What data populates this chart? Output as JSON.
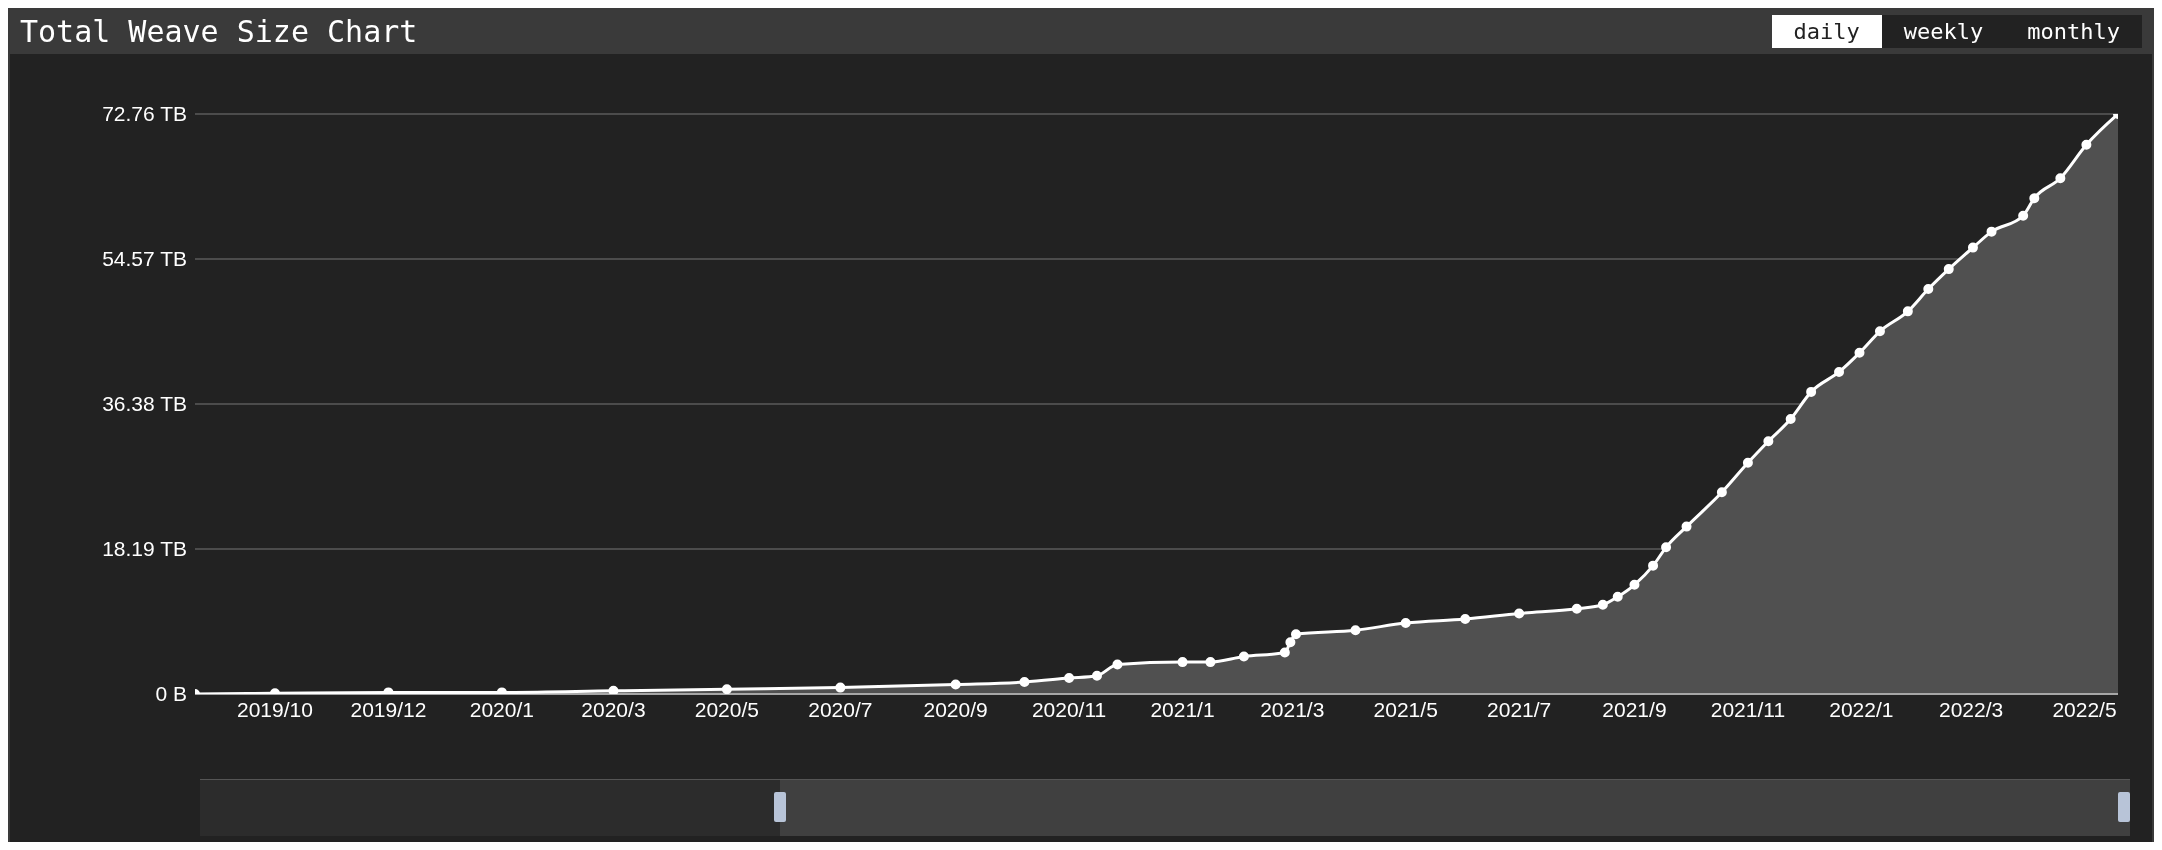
{
  "chart_data": {
    "type": "area",
    "title": "Total Weave Size Chart",
    "annotations": [
      "daily",
      "weekly",
      "monthly"
    ],
    "x": [
      "2019-07-20",
      "2019-09-01",
      "2019-11-01",
      "2020-01-01",
      "2020-03-01",
      "2020-05-01",
      "2020-07-01",
      "2020-09-01",
      "2020-10-08",
      "2020-11-01",
      "2020-11-16",
      "2020-11-27",
      "2021-01-01",
      "2021-01-16",
      "2021-02-03",
      "2021-02-25",
      "2021-02-28",
      "2021-03-03",
      "2021-04-04",
      "2021-05-01",
      "2021-06-02",
      "2021-07-01",
      "2021-08-01",
      "2021-08-15",
      "2021-08-23",
      "2021-09-01",
      "2021-09-11",
      "2021-09-18",
      "2021-09-29",
      "2021-10-18",
      "2021-11-01",
      "2021-11-12",
      "2021-11-24",
      "2021-12-05",
      "2021-12-20",
      "2021-12-31",
      "2022-01-11",
      "2022-01-26",
      "2022-02-06",
      "2022-02-17",
      "2022-03-02",
      "2022-03-12",
      "2022-03-29",
      "2022-04-04",
      "2022-04-18",
      "2022-05-02",
      "2022-05-19"
    ],
    "series": [
      {
        "color": "#ffffff",
        "values": [
          0.0,
          0.1,
          0.2,
          0.2,
          0.4,
          0.6,
          0.8,
          1.2,
          1.5,
          2.0,
          2.3,
          3.7,
          4.0,
          4.0,
          4.7,
          5.2,
          6.5,
          7.5,
          8.0,
          8.9,
          9.4,
          10.1,
          10.7,
          11.2,
          12.2,
          13.7,
          16.1,
          18.4,
          21.0,
          25.3,
          29.0,
          31.7,
          34.5,
          37.9,
          40.4,
          42.8,
          45.5,
          48.0,
          50.8,
          53.3,
          56.0,
          58.0,
          60.0,
          62.2,
          64.7,
          68.9,
          72.76
        ]
      }
    ],
    "xlim": [
      "2019-07-20",
      "2022-05-19"
    ],
    "xticks": [
      {
        "value": "2019-09-01",
        "label": "2019/10"
      },
      {
        "value": "2019-11-01",
        "label": "2019/12"
      },
      {
        "value": "2020-01-01",
        "label": "2020/1"
      },
      {
        "value": "2020-03-01",
        "label": "2020/3"
      },
      {
        "value": "2020-05-01",
        "label": "2020/5"
      },
      {
        "value": "2020-07-01",
        "label": "2020/7"
      },
      {
        "value": "2020-09-01",
        "label": "2020/9"
      },
      {
        "value": "2020-11-01",
        "label": "2020/11"
      },
      {
        "value": "2021-01-01",
        "label": "2021/1"
      },
      {
        "value": "2021-03-01",
        "label": "2021/3"
      },
      {
        "value": "2021-05-01",
        "label": "2021/5"
      },
      {
        "value": "2021-07-01",
        "label": "2021/7"
      },
      {
        "value": "2021-09-01",
        "label": "2021/9"
      },
      {
        "value": "2021-11-01",
        "label": "2021/11"
      },
      {
        "value": "2022-01-01",
        "label": "2022/1"
      },
      {
        "value": "2022-03-01",
        "label": "2022/3"
      },
      {
        "value": "2022-05-01",
        "label": "2022/5"
      }
    ],
    "ylim": [
      0,
      72.76
    ],
    "yticks": [
      {
        "value": 0,
        "label": "0 B"
      },
      {
        "value": 18.19,
        "label": "18.19 TB"
      },
      {
        "value": 36.38,
        "label": "36.38 TB"
      },
      {
        "value": 54.57,
        "label": "54.57 TB"
      },
      {
        "value": 72.76,
        "label": "72.76 TB"
      }
    ],
    "grid": "y",
    "marker": "circle",
    "line_style": "solid"
  }
}
